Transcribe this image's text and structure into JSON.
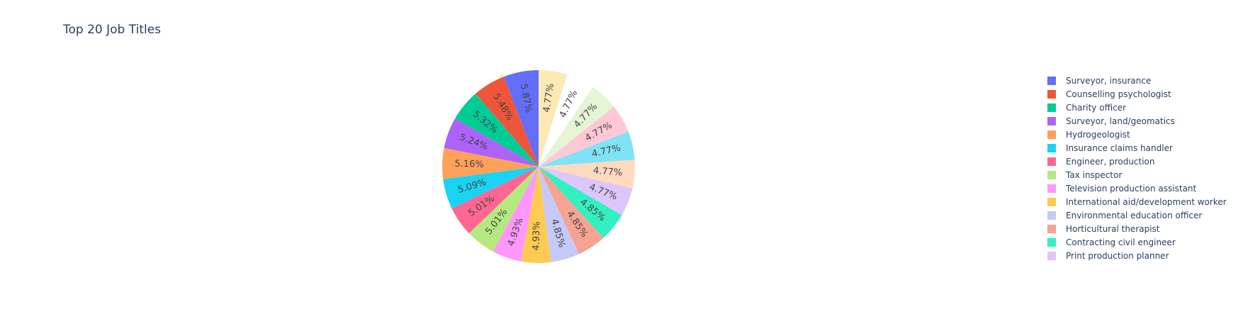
{
  "chart_data": {
    "type": "pie",
    "title": "Top 20 Job Titles",
    "slices": [
      {
        "label": "Surveyor, insurance",
        "percent": 5.87,
        "color": "#636efa"
      },
      {
        "label": "Counselling psychologist",
        "percent": 5.48,
        "color": "#EF553B"
      },
      {
        "label": "Charity officer",
        "percent": 5.32,
        "color": "#00cc96"
      },
      {
        "label": "Surveyor, land/geomatics",
        "percent": 5.24,
        "color": "#ab63fa"
      },
      {
        "label": "Hydrogeologist",
        "percent": 5.16,
        "color": "#FFA15A"
      },
      {
        "label": "Insurance claims handler",
        "percent": 5.09,
        "color": "#19d3f3"
      },
      {
        "label": "Engineer, production",
        "percent": 5.01,
        "color": "#FF6692"
      },
      {
        "label": "Tax inspector",
        "percent": 5.01,
        "color": "#B6E880"
      },
      {
        "label": "Television production assistant",
        "percent": 4.93,
        "color": "#FF97FF"
      },
      {
        "label": "International aid/development worker",
        "percent": 4.93,
        "color": "#FECB52"
      },
      {
        "label": "Environmental education officer",
        "percent": 4.85,
        "color": "#c6caf9"
      },
      {
        "label": "Horticultural therapist",
        "percent": 4.85,
        "color": "#f4a394"
      },
      {
        "label": "Contracting civil engineer",
        "percent": 4.85,
        "color": "#33f0c0"
      },
      {
        "label": "Print production planner",
        "percent": 4.77,
        "color": "#dcc6fc"
      },
      {
        "label": "",
        "percent": 4.77,
        "color": "#ffdac0"
      },
      {
        "label": "",
        "percent": 4.77,
        "color": "#7ee3f5"
      },
      {
        "label": "",
        "percent": 4.77,
        "color": "#ffc8d6"
      },
      {
        "label": "",
        "percent": 4.77,
        "color": "#e5f5d5"
      },
      {
        "label": "",
        "percent": 4.77,
        "color": "#ffffff"
      },
      {
        "label": "",
        "percent": 4.77,
        "color": "#fee8b3"
      }
    ],
    "legend_position": "right",
    "sort": "descending",
    "direction": "counterclockwise"
  }
}
